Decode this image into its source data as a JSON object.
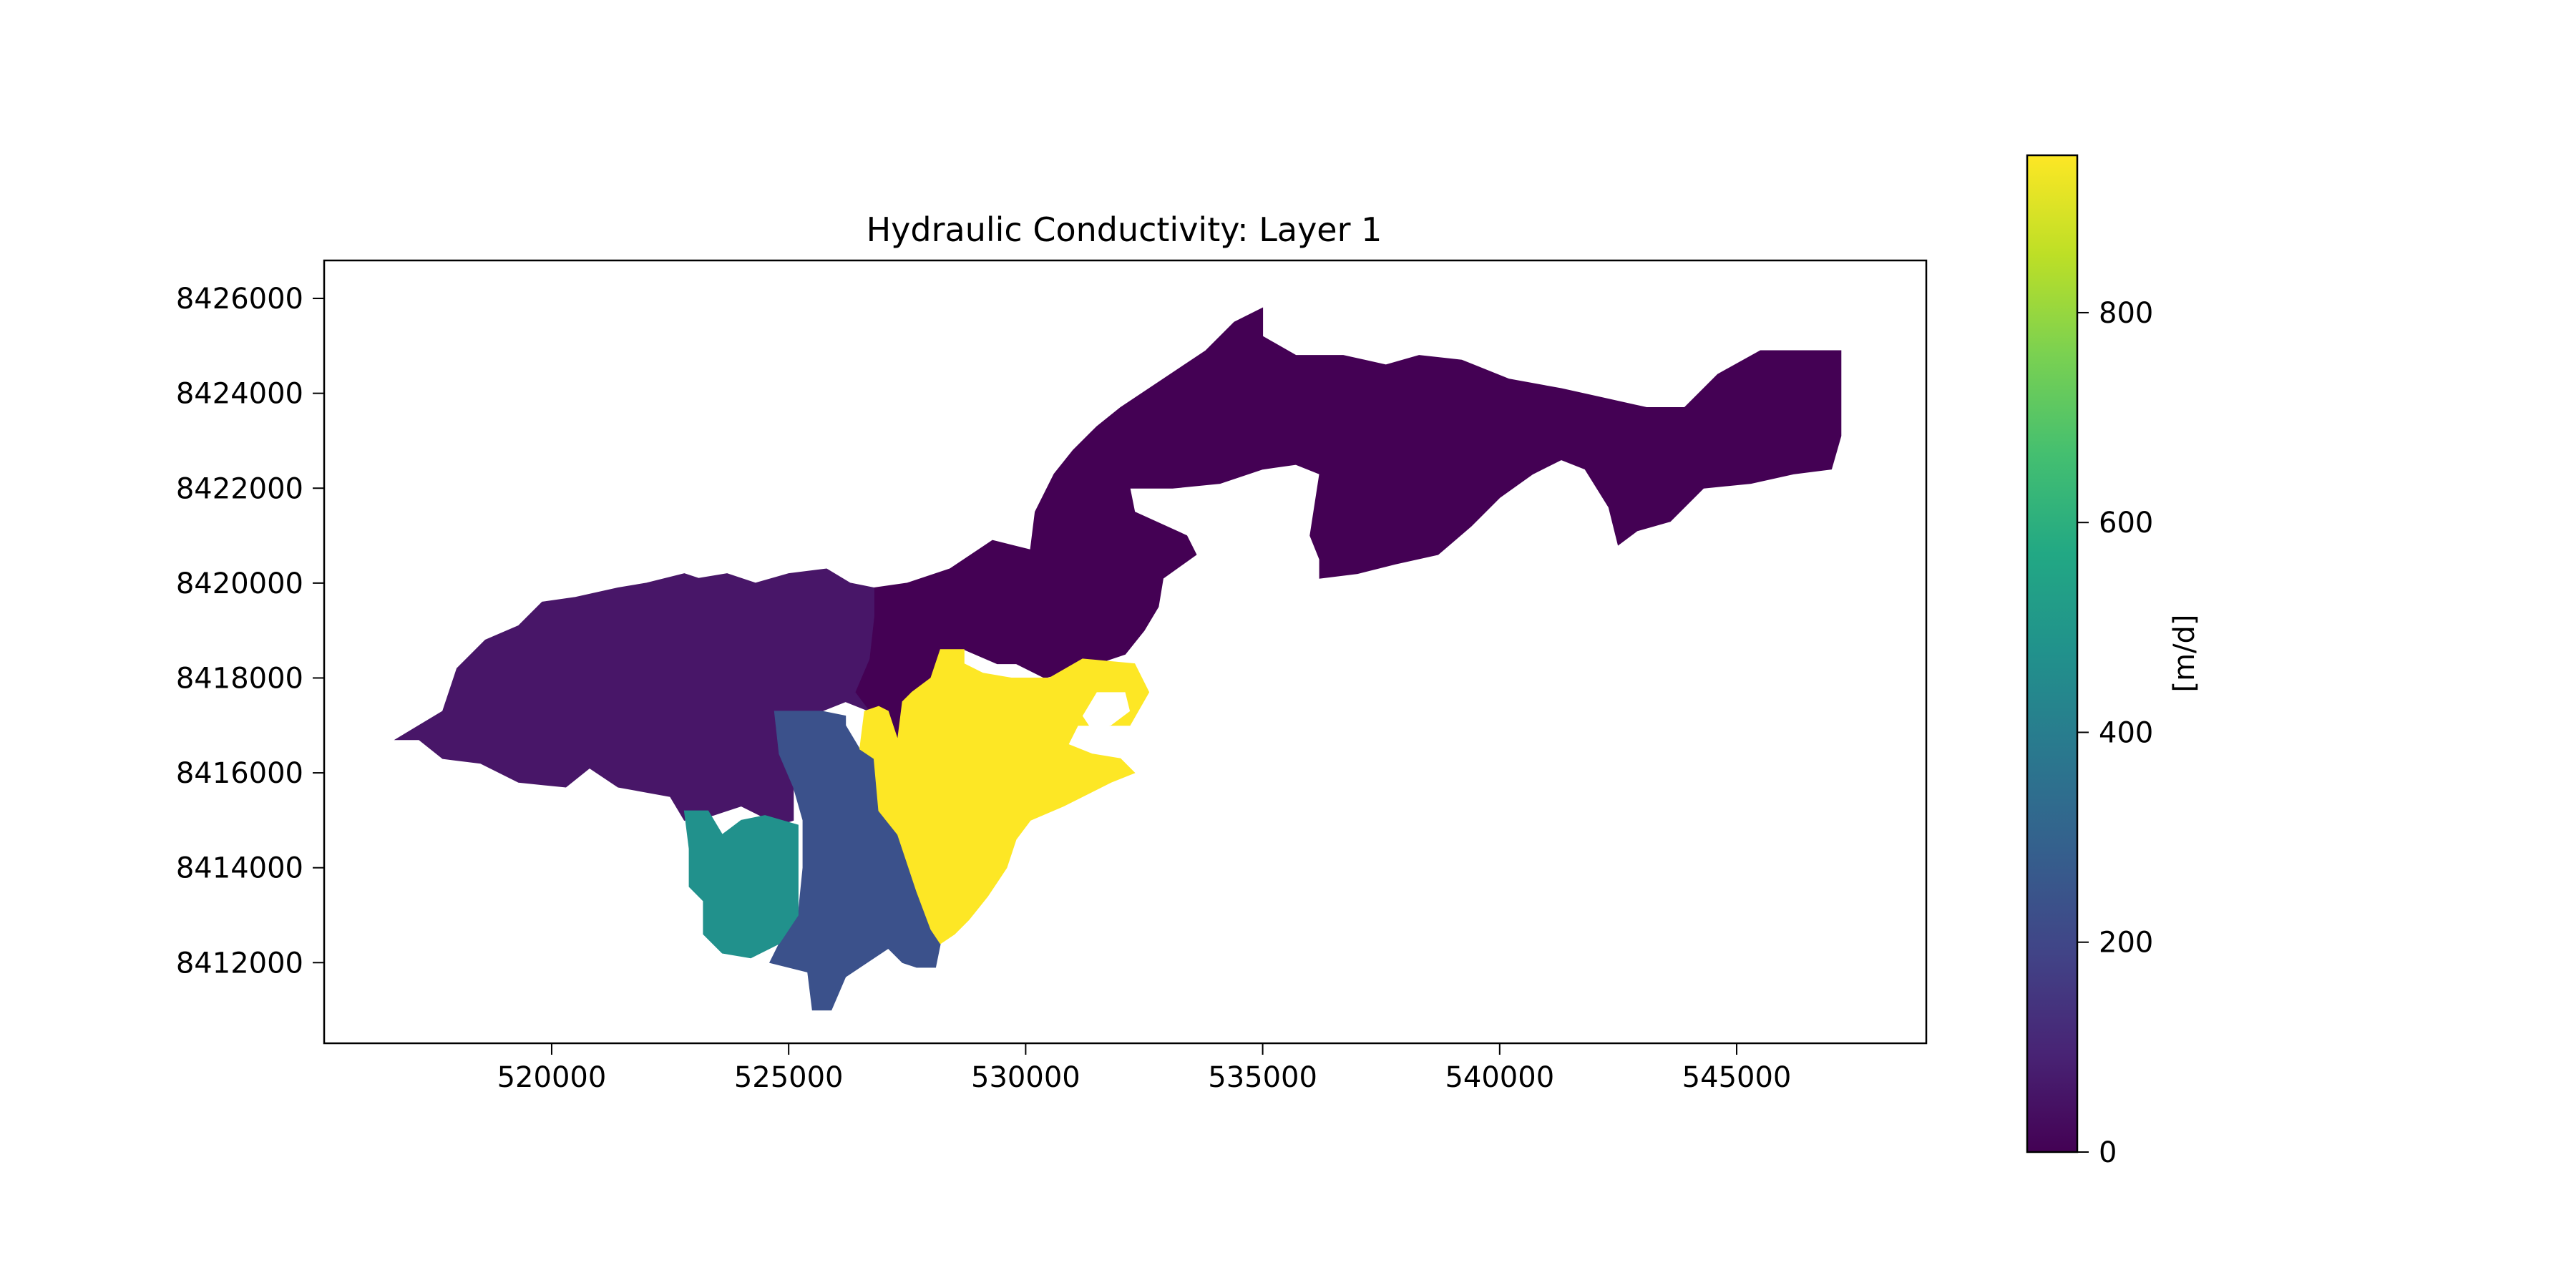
{
  "chart_data": [
    {
      "type": "heatmap",
      "title": "Hydraulic Conductivity: Layer 1",
      "xlabel": "",
      "ylabel": "",
      "xlim": [
        515200,
        549000
      ],
      "ylim": [
        8410300,
        8426800
      ],
      "x_ticks": [
        520000,
        525000,
        530000,
        535000,
        540000,
        545000
      ],
      "y_ticks": [
        8412000,
        8414000,
        8416000,
        8418000,
        8420000,
        8422000,
        8424000,
        8426000
      ],
      "x_tick_labels": [
        "520000",
        "525000",
        "530000",
        "535000",
        "540000",
        "545000"
      ],
      "y_tick_labels": [
        "8412000",
        "8414000",
        "8416000",
        "8418000",
        "8420000",
        "8422000",
        "8424000",
        "8426000"
      ],
      "grid": false,
      "zones": [
        {
          "value": 30,
          "color": "#440154",
          "outline": [
            [
              526800,
              8419900
            ],
            [
              527500,
              8420000
            ],
            [
              528400,
              8420300
            ],
            [
              529300,
              8420900
            ],
            [
              530100,
              8420700
            ],
            [
              530200,
              8421500
            ],
            [
              530600,
              8422300
            ],
            [
              531000,
              8422800
            ],
            [
              531500,
              8423300
            ],
            [
              532000,
              8423700
            ],
            [
              532900,
              8424300
            ],
            [
              533800,
              8424900
            ],
            [
              534400,
              8425500
            ],
            [
              535000,
              8425800
            ],
            [
              535000,
              8425200
            ],
            [
              535700,
              8424800
            ],
            [
              536700,
              8424800
            ],
            [
              537600,
              8424600
            ],
            [
              538300,
              8424800
            ],
            [
              539200,
              8424700
            ],
            [
              540200,
              8424300
            ],
            [
              541300,
              8424100
            ],
            [
              542200,
              8423900
            ],
            [
              543100,
              8423700
            ],
            [
              543900,
              8423700
            ],
            [
              544600,
              8424400
            ],
            [
              545500,
              8424900
            ],
            [
              546500,
              8424900
            ],
            [
              547200,
              8424900
            ],
            [
              547200,
              8424300
            ],
            [
              547200,
              8423100
            ],
            [
              547000,
              8422400
            ],
            [
              546200,
              8422300
            ],
            [
              545300,
              8422100
            ],
            [
              544300,
              8422000
            ],
            [
              543600,
              8421300
            ],
            [
              542900,
              8421100
            ],
            [
              542500,
              8420800
            ],
            [
              542300,
              8421600
            ],
            [
              541800,
              8422400
            ],
            [
              541300,
              8422600
            ],
            [
              540700,
              8422300
            ],
            [
              540000,
              8421800
            ],
            [
              539400,
              8421200
            ],
            [
              538700,
              8420600
            ],
            [
              537800,
              8420400
            ],
            [
              537000,
              8420200
            ],
            [
              536200,
              8420100
            ],
            [
              536200,
              8420500
            ],
            [
              536000,
              8421000
            ],
            [
              536200,
              8422300
            ],
            [
              535700,
              8422500
            ],
            [
              535000,
              8422400
            ],
            [
              534100,
              8422100
            ],
            [
              533100,
              8422000
            ],
            [
              532200,
              8422000
            ],
            [
              532300,
              8421500
            ],
            [
              533400,
              8421000
            ],
            [
              533600,
              8420600
            ],
            [
              532900,
              8420100
            ],
            [
              532800,
              8419500
            ],
            [
              532500,
              8419000
            ],
            [
              532100,
              8418500
            ],
            [
              531500,
              8418300
            ],
            [
              530800,
              8418100
            ],
            [
              530400,
              8418000
            ],
            [
              529800,
              8418300
            ],
            [
              529400,
              8418300
            ],
            [
              528700,
              8418600
            ],
            [
              528200,
              8418600
            ],
            [
              528000,
              8418000
            ],
            [
              527600,
              8417700
            ],
            [
              527400,
              8417500
            ],
            [
              527300,
              8416700
            ],
            [
              526700,
              8416700
            ],
            [
              526700,
              8417300
            ],
            [
              526400,
              8417700
            ],
            [
              526700,
              8418400
            ],
            [
              526800,
              8419300
            ]
          ]
        },
        {
          "value": 100,
          "color": "#481668",
          "outline": [
            [
              526800,
              8419900
            ],
            [
              526300,
              8420000
            ],
            [
              525800,
              8420300
            ],
            [
              525000,
              8420200
            ],
            [
              524300,
              8420000
            ],
            [
              523700,
              8420200
            ],
            [
              523100,
              8420100
            ],
            [
              522800,
              8420200
            ],
            [
              522000,
              8420000
            ],
            [
              521400,
              8419900
            ],
            [
              520500,
              8419700
            ],
            [
              519800,
              8419600
            ],
            [
              519300,
              8419100
            ],
            [
              518600,
              8418800
            ],
            [
              518000,
              8418200
            ],
            [
              517700,
              8417300
            ],
            [
              517200,
              8417000
            ],
            [
              516700,
              8416700
            ],
            [
              517200,
              8416700
            ],
            [
              517700,
              8416300
            ],
            [
              518500,
              8416200
            ],
            [
              519300,
              8415800
            ],
            [
              520300,
              8415700
            ],
            [
              520800,
              8416100
            ],
            [
              521400,
              8415700
            ],
            [
              522500,
              8415500
            ],
            [
              522800,
              8415000
            ],
            [
              523400,
              8415100
            ],
            [
              524000,
              8415300
            ],
            [
              524800,
              8414900
            ],
            [
              525100,
              8415000
            ],
            [
              525100,
              8415700
            ],
            [
              524800,
              8416400
            ],
            [
              524700,
              8417300
            ],
            [
              525700,
              8417300
            ],
            [
              526200,
              8417500
            ],
            [
              526700,
              8417300
            ],
            [
              526400,
              8417700
            ],
            [
              526700,
              8418400
            ],
            [
              526800,
              8419300
            ]
          ]
        },
        {
          "value": 230,
          "color": "#3b518b",
          "outline": [
            [
              524700,
              8417300
            ],
            [
              525700,
              8417300
            ],
            [
              526200,
              8417200
            ],
            [
              526200,
              8417000
            ],
            [
              526500,
              8416500
            ],
            [
              526800,
              8416300
            ],
            [
              526900,
              8415200
            ],
            [
              527300,
              8414700
            ],
            [
              527700,
              8413500
            ],
            [
              528000,
              8412700
            ],
            [
              528200,
              8412400
            ],
            [
              528100,
              8411900
            ],
            [
              527700,
              8411900
            ],
            [
              527400,
              8412000
            ],
            [
              527100,
              8412300
            ],
            [
              526800,
              8412100
            ],
            [
              526200,
              8411700
            ],
            [
              525900,
              8411000
            ],
            [
              525500,
              8411000
            ],
            [
              525400,
              8411800
            ],
            [
              524600,
              8412000
            ],
            [
              524800,
              8412400
            ],
            [
              525200,
              8413000
            ],
            [
              525300,
              8414000
            ],
            [
              525300,
              8415000
            ],
            [
              525100,
              8415700
            ],
            [
              524800,
              8416400
            ]
          ]
        },
        {
          "value": 520,
          "color": "#21918c",
          "outline": [
            [
              522800,
              8415200
            ],
            [
              523300,
              8415200
            ],
            [
              523600,
              8414700
            ],
            [
              524000,
              8415000
            ],
            [
              524500,
              8415100
            ],
            [
              525200,
              8414900
            ],
            [
              525200,
              8414000
            ],
            [
              525200,
              8413000
            ],
            [
              524800,
              8412400
            ],
            [
              524200,
              8412100
            ],
            [
              523600,
              8412200
            ],
            [
              523200,
              8412600
            ],
            [
              523200,
              8413300
            ],
            [
              522900,
              8413600
            ],
            [
              522900,
              8414400
            ]
          ]
        },
        {
          "value": 950,
          "color": "#fde725",
          "outline": [
            [
              526600,
              8417300
            ],
            [
              526900,
              8417400
            ],
            [
              527100,
              8417300
            ],
            [
              527300,
              8416700
            ],
            [
              527400,
              8417500
            ],
            [
              527600,
              8417700
            ],
            [
              528000,
              8418000
            ],
            [
              528200,
              8418600
            ],
            [
              528700,
              8418600
            ],
            [
              528700,
              8418300
            ],
            [
              529100,
              8418100
            ],
            [
              529700,
              8418000
            ],
            [
              530500,
              8418000
            ],
            [
              531200,
              8418400
            ],
            [
              532300,
              8418300
            ],
            [
              532600,
              8417700
            ],
            [
              532200,
              8417000
            ],
            [
              531100,
              8417000
            ],
            [
              530900,
              8416600
            ],
            [
              531400,
              8416400
            ],
            [
              532000,
              8416300
            ],
            [
              532300,
              8416000
            ],
            [
              531800,
              8415800
            ],
            [
              530800,
              8415300
            ],
            [
              530100,
              8415000
            ],
            [
              529800,
              8414600
            ],
            [
              529600,
              8414000
            ],
            [
              529200,
              8413400
            ],
            [
              528800,
              8412900
            ],
            [
              528500,
              8412600
            ],
            [
              528200,
              8412400
            ],
            [
              528000,
              8412700
            ],
            [
              527700,
              8413500
            ],
            [
              527300,
              8414700
            ],
            [
              526900,
              8415200
            ],
            [
              526800,
              8416300
            ],
            [
              526500,
              8416500
            ]
          ]
        }
      ],
      "holes": [
        {
          "color": "#ffffff",
          "outline": [
            [
              531200,
              8417200
            ],
            [
              531500,
              8417700
            ],
            [
              532100,
              8417700
            ],
            [
              532200,
              8417300
            ],
            [
              531800,
              8417000
            ],
            [
              531400,
              8416900
            ]
          ]
        }
      ]
    },
    {
      "type": "colorbar",
      "label": "[m/d]",
      "vmin": 0,
      "vmax": 950,
      "ticks": [
        0,
        200,
        400,
        600,
        800
      ],
      "tick_labels": [
        "0",
        "200",
        "400",
        "600",
        "800"
      ],
      "colormap": "viridis"
    }
  ]
}
